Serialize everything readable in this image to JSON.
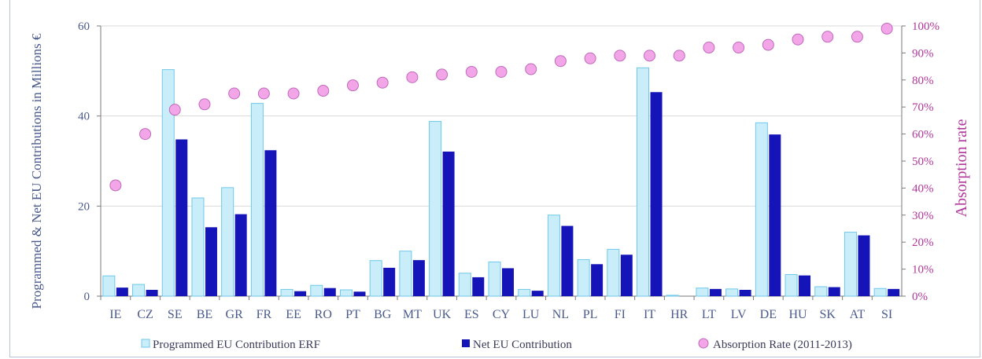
{
  "chart_data": {
    "type": "bar",
    "categories": [
      "IE",
      "CZ",
      "SE",
      "BE",
      "GR",
      "FR",
      "EE",
      "RO",
      "PT",
      "BG",
      "MT",
      "UK",
      "ES",
      "CY",
      "LU",
      "NL",
      "PL",
      "FI",
      "IT",
      "HR",
      "LT",
      "LV",
      "DE",
      "HU",
      "SK",
      "AT",
      "SI"
    ],
    "series": [
      {
        "name": "Programmed EU Contribution ERF",
        "axis": "left",
        "color": "#c9eefa",
        "values": [
          4.5,
          2.6,
          50.3,
          21.8,
          24.1,
          42.8,
          1.5,
          2.4,
          1.4,
          7.9,
          10.0,
          38.8,
          5.1,
          7.6,
          1.5,
          18.0,
          8.1,
          10.4,
          50.7,
          0.2,
          1.8,
          1.6,
          38.5,
          4.8,
          2.1,
          14.2,
          1.7
        ]
      },
      {
        "name": "Net EU Contribution",
        "axis": "left",
        "color": "#1414b8",
        "values": [
          1.9,
          1.4,
          34.8,
          15.3,
          18.2,
          32.4,
          1.1,
          1.8,
          1.0,
          6.3,
          8.0,
          32.1,
          4.2,
          6.2,
          1.2,
          15.6,
          7.1,
          9.2,
          45.3,
          0.0,
          1.6,
          1.4,
          35.9,
          4.6,
          2.0,
          13.5,
          1.6
        ]
      },
      {
        "name": "Absorption Rate (2011-2013)",
        "axis": "right",
        "type": "scatter",
        "color": "#f2a6e8",
        "values": [
          41,
          60,
          69,
          71,
          75,
          75,
          75,
          76,
          78,
          79,
          81,
          82,
          83,
          83,
          84,
          87,
          88,
          89,
          89,
          89,
          92,
          92,
          93,
          95,
          96,
          96,
          99
        ]
      }
    ],
    "ylabel": "Programmed & Net EU  Contributions in Millions €",
    "ylim": [
      0,
      60
    ],
    "yticks": [
      "0",
      "20",
      "40",
      "60"
    ],
    "y2label": "Absorption rate",
    "y2lim": [
      0,
      100
    ],
    "y2ticks": [
      "0%",
      "10%",
      "20%",
      "30%",
      "40%",
      "50%",
      "60%",
      "70%",
      "80%",
      "90%",
      "100%"
    ],
    "grid": true,
    "legend_position": "bottom"
  }
}
